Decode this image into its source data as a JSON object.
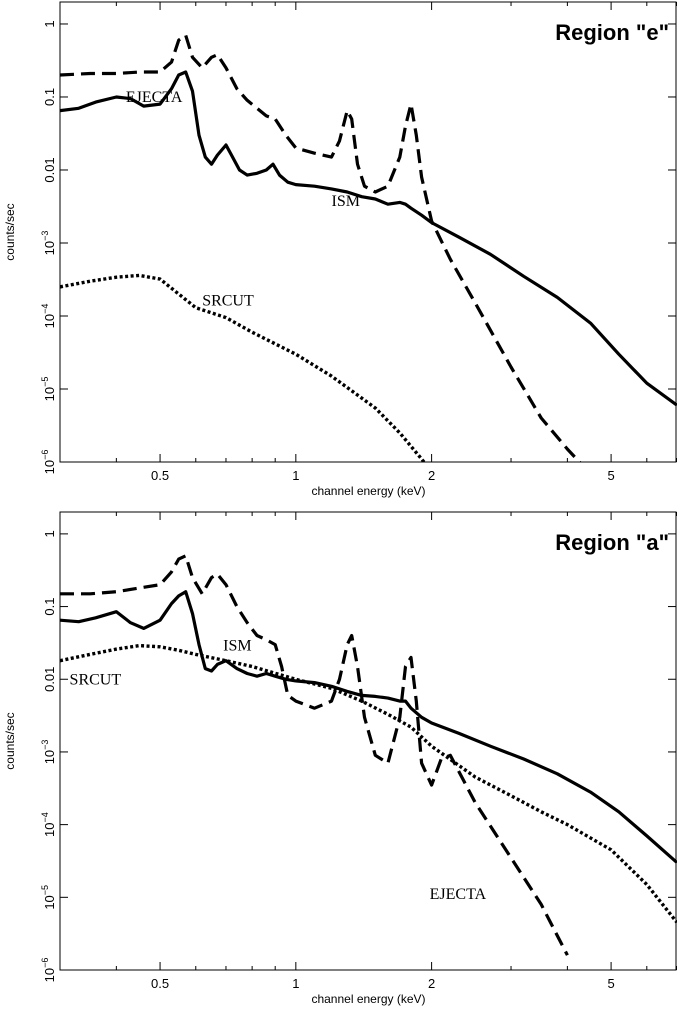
{
  "chart_data": [
    {
      "type": "line",
      "title": "Region \"e\"",
      "xlabel": "channel energy (keV)",
      "ylabel": "counts/sec",
      "x_scale": "log",
      "y_scale": "log",
      "xlim": [
        0.3,
        7.0
      ],
      "ylim": [
        1e-06,
        2.0
      ],
      "x_ticks": [
        {
          "value": 0.5,
          "label": "0.5"
        },
        {
          "value": 1,
          "label": "1"
        },
        {
          "value": 2,
          "label": "2"
        },
        {
          "value": 5,
          "label": "5"
        }
      ],
      "y_ticks": [
        {
          "value": 1,
          "base": "1",
          "exp": ""
        },
        {
          "value": 0.1,
          "base": "0.1",
          "exp": ""
        },
        {
          "value": 0.01,
          "base": "0.01",
          "exp": ""
        },
        {
          "value": 0.001,
          "base": "10",
          "exp": "−3"
        },
        {
          "value": 0.0001,
          "base": "10",
          "exp": "−4"
        },
        {
          "value": 1e-05,
          "base": "10",
          "exp": "−5"
        },
        {
          "value": 1e-06,
          "base": "10",
          "exp": "−6"
        }
      ],
      "annotations": [
        {
          "text": "EJECTA",
          "x": 0.42,
          "y": 0.085
        },
        {
          "text": "ISM",
          "x": 1.2,
          "y": 0.0032
        },
        {
          "text": "SRCUT",
          "x": 0.62,
          "y": 0.00014
        }
      ],
      "series": [
        {
          "name": "ISM",
          "style": "solid-thick",
          "x": [
            0.3,
            0.33,
            0.36,
            0.4,
            0.43,
            0.46,
            0.5,
            0.53,
            0.55,
            0.57,
            0.59,
            0.61,
            0.63,
            0.65,
            0.67,
            0.7,
            0.72,
            0.75,
            0.78,
            0.82,
            0.86,
            0.89,
            0.92,
            0.96,
            1.0,
            1.1,
            1.2,
            1.3,
            1.4,
            1.5,
            1.6,
            1.7,
            1.75,
            1.8,
            1.9,
            2.0,
            2.3,
            2.7,
            3.2,
            3.8,
            4.5,
            5.2,
            6.0,
            7.0
          ],
          "y": [
            0.065,
            0.07,
            0.085,
            0.1,
            0.095,
            0.075,
            0.08,
            0.13,
            0.2,
            0.22,
            0.12,
            0.03,
            0.015,
            0.012,
            0.016,
            0.022,
            0.016,
            0.01,
            0.0085,
            0.009,
            0.01,
            0.012,
            0.0085,
            0.0068,
            0.0063,
            0.006,
            0.0055,
            0.005,
            0.0043,
            0.004,
            0.0034,
            0.0036,
            0.0034,
            0.003,
            0.0024,
            0.0019,
            0.0012,
            0.0007,
            0.00035,
            0.00018,
            8e-05,
            3e-05,
            1.2e-05,
            6e-06
          ]
        },
        {
          "name": "EJECTA",
          "style": "dashed-thick",
          "x": [
            0.3,
            0.35,
            0.4,
            0.45,
            0.5,
            0.53,
            0.55,
            0.57,
            0.59,
            0.62,
            0.65,
            0.67,
            0.7,
            0.74,
            0.78,
            0.82,
            0.86,
            0.9,
            0.95,
            1.0,
            1.1,
            1.2,
            1.25,
            1.3,
            1.33,
            1.37,
            1.42,
            1.5,
            1.6,
            1.7,
            1.75,
            1.8,
            1.85,
            1.9,
            2.0,
            2.2,
            2.5,
            3.0,
            3.5,
            4.0,
            4.4
          ],
          "y": [
            0.2,
            0.21,
            0.21,
            0.22,
            0.22,
            0.3,
            0.6,
            0.7,
            0.35,
            0.25,
            0.35,
            0.38,
            0.25,
            0.13,
            0.09,
            0.07,
            0.055,
            0.05,
            0.03,
            0.02,
            0.017,
            0.015,
            0.025,
            0.065,
            0.05,
            0.012,
            0.006,
            0.005,
            0.006,
            0.015,
            0.04,
            0.08,
            0.03,
            0.008,
            0.002,
            0.0006,
            0.00015,
            2e-05,
            4e-06,
            1.5e-06,
            8e-07
          ]
        },
        {
          "name": "SRCUT",
          "style": "dotted-thick",
          "x": [
            0.3,
            0.35,
            0.4,
            0.45,
            0.5,
            0.55,
            0.6,
            0.7,
            0.8,
            1.0,
            1.2,
            1.5,
            1.7,
            1.9,
            2.1
          ],
          "y": [
            0.00025,
            0.0003,
            0.00034,
            0.00036,
            0.00032,
            0.0002,
            0.00013,
            9.5e-05,
            6e-05,
            3e-05,
            1.5e-05,
            5.5e-06,
            2.5e-06,
            1.1e-06,
            5e-07
          ]
        }
      ]
    },
    {
      "type": "line",
      "title": "Region \"a\"",
      "xlabel": "channel energy (keV)",
      "ylabel": "counts/sec",
      "x_scale": "log",
      "y_scale": "log",
      "xlim": [
        0.3,
        7.0
      ],
      "ylim": [
        1e-06,
        2.0
      ],
      "x_ticks": [
        {
          "value": 0.5,
          "label": "0.5"
        },
        {
          "value": 1,
          "label": "1"
        },
        {
          "value": 2,
          "label": "2"
        },
        {
          "value": 5,
          "label": "5"
        }
      ],
      "y_ticks": [
        {
          "value": 1,
          "base": "1",
          "exp": ""
        },
        {
          "value": 0.1,
          "base": "0.1",
          "exp": ""
        },
        {
          "value": 0.01,
          "base": "0.01",
          "exp": ""
        },
        {
          "value": 0.001,
          "base": "10",
          "exp": "−3"
        },
        {
          "value": 0.0001,
          "base": "10",
          "exp": "−4"
        },
        {
          "value": 1e-05,
          "base": "10",
          "exp": "−5"
        },
        {
          "value": 1e-06,
          "base": "10",
          "exp": "−6"
        }
      ],
      "annotations": [
        {
          "text": "ISM",
          "x": 0.69,
          "y": 0.025
        },
        {
          "text": "SRCUT",
          "x": 0.315,
          "y": 0.0085
        },
        {
          "text": "EJECTA",
          "x": 1.98,
          "y": 9.5e-06
        }
      ],
      "series": [
        {
          "name": "ISM",
          "style": "solid-thick",
          "x": [
            0.3,
            0.33,
            0.36,
            0.4,
            0.43,
            0.46,
            0.5,
            0.53,
            0.55,
            0.57,
            0.59,
            0.61,
            0.63,
            0.65,
            0.67,
            0.7,
            0.74,
            0.78,
            0.82,
            0.86,
            0.9,
            0.95,
            1.0,
            1.1,
            1.2,
            1.3,
            1.4,
            1.5,
            1.6,
            1.7,
            1.75,
            1.8,
            1.9,
            2.0,
            2.3,
            2.7,
            3.2,
            3.8,
            4.5,
            5.2,
            6.0,
            7.0
          ],
          "y": [
            0.065,
            0.062,
            0.07,
            0.085,
            0.06,
            0.05,
            0.065,
            0.11,
            0.14,
            0.16,
            0.08,
            0.03,
            0.014,
            0.013,
            0.016,
            0.018,
            0.014,
            0.012,
            0.011,
            0.012,
            0.011,
            0.01,
            0.0095,
            0.009,
            0.008,
            0.0068,
            0.006,
            0.0058,
            0.0055,
            0.005,
            0.005,
            0.004,
            0.003,
            0.0025,
            0.0018,
            0.0012,
            0.0008,
            0.0005,
            0.00028,
            0.00015,
            7e-05,
            3e-05
          ]
        },
        {
          "name": "EJECTA",
          "style": "dashed-thick",
          "x": [
            0.3,
            0.35,
            0.4,
            0.45,
            0.5,
            0.53,
            0.55,
            0.57,
            0.59,
            0.62,
            0.65,
            0.67,
            0.7,
            0.74,
            0.78,
            0.82,
            0.86,
            0.9,
            0.93,
            0.96,
            1.0,
            1.1,
            1.2,
            1.25,
            1.3,
            1.33,
            1.37,
            1.42,
            1.5,
            1.6,
            1.7,
            1.75,
            1.8,
            1.85,
            1.9,
            2.0,
            2.1,
            2.2,
            2.5,
            3.0,
            3.5,
            4.0
          ],
          "y": [
            0.15,
            0.15,
            0.16,
            0.18,
            0.2,
            0.3,
            0.45,
            0.5,
            0.25,
            0.15,
            0.25,
            0.28,
            0.2,
            0.1,
            0.06,
            0.04,
            0.035,
            0.03,
            0.015,
            0.006,
            0.005,
            0.004,
            0.005,
            0.01,
            0.03,
            0.04,
            0.015,
            0.003,
            0.0009,
            0.0007,
            0.003,
            0.015,
            0.02,
            0.005,
            0.0007,
            0.00035,
            0.0008,
            0.0009,
            0.0002,
            3.5e-05,
            8e-06,
            1.6e-06
          ]
        },
        {
          "name": "SRCUT",
          "style": "dotted-thick",
          "x": [
            0.3,
            0.35,
            0.4,
            0.45,
            0.5,
            0.55,
            0.6,
            0.7,
            0.8,
            1.0,
            1.2,
            1.4,
            1.6,
            1.8,
            2.0,
            2.5,
            3.0,
            3.5,
            4.0,
            5.0,
            6.0,
            7.0
          ],
          "y": [
            0.018,
            0.022,
            0.026,
            0.029,
            0.028,
            0.025,
            0.022,
            0.018,
            0.015,
            0.01,
            0.0075,
            0.005,
            0.0033,
            0.0022,
            0.0012,
            0.00045,
            0.00025,
            0.00015,
            0.0001,
            4.5e-05,
            1.5e-05,
            4.5e-06
          ]
        }
      ]
    }
  ]
}
